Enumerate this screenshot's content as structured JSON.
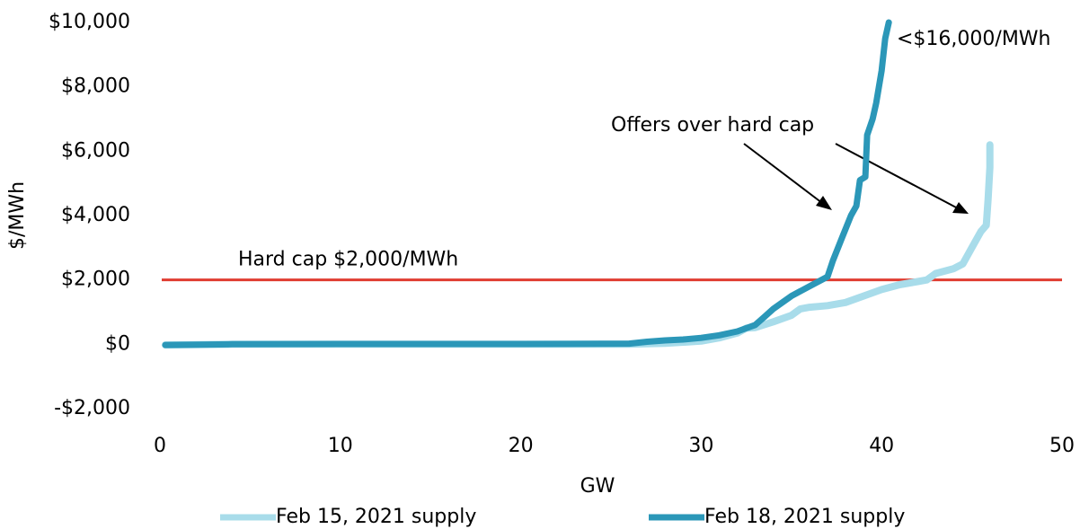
{
  "chart_data": {
    "type": "line",
    "x_label": "GW",
    "y_label": "$/MWh",
    "xlim": [
      0,
      50
    ],
    "xticks": [
      0,
      10,
      20,
      30,
      40,
      50
    ],
    "ylim": [
      -2000,
      10000
    ],
    "yticks": [
      {
        "value": -2000,
        "label": "-$2,000"
      },
      {
        "value": 0,
        "label": "$0"
      },
      {
        "value": 2000,
        "label": "$2,000"
      },
      {
        "value": 4000,
        "label": "$4,000"
      },
      {
        "value": 6000,
        "label": "$6,000"
      },
      {
        "value": 8000,
        "label": "$8,000"
      },
      {
        "value": 10000,
        "label": "$10,000"
      }
    ],
    "grid": false,
    "reference_lines": [
      {
        "value": 2000,
        "color": "#e03c31",
        "label": "Hard cap $2,000/MWh"
      }
    ],
    "annotations": [
      "Offers over hard cap",
      "<$16,000/MWh"
    ],
    "legend": "bottom",
    "series": [
      {
        "name": "Feb 15, 2021 supply",
        "color": "#a8dcea",
        "x": [
          0.3,
          4,
          10,
          20,
          26,
          28,
          30,
          31,
          32,
          32.5,
          33,
          34,
          35,
          35.5,
          36,
          37,
          38,
          39,
          40,
          41,
          42,
          42.5,
          43,
          44,
          44.5,
          45,
          45.5,
          45.8,
          45.9,
          46,
          46
        ],
        "values": [
          -20,
          0,
          0,
          0,
          0,
          30,
          100,
          200,
          350,
          500,
          520,
          700,
          900,
          1100,
          1150,
          1200,
          1300,
          1500,
          1700,
          1850,
          1950,
          2000,
          2200,
          2350,
          2500,
          3000,
          3500,
          3700,
          4500,
          5500,
          6200
        ]
      },
      {
        "name": "Feb 18, 2021 supply",
        "color": "#2b97b8",
        "x": [
          0.3,
          4,
          10,
          20,
          26,
          27,
          28,
          29,
          30,
          31,
          32,
          33,
          33.5,
          34,
          35,
          36,
          37,
          37.3,
          37.8,
          38.3,
          38.6,
          38.8,
          39.1,
          39.2,
          39.5,
          39.7,
          40,
          40.2,
          40.4
        ],
        "values": [
          -20,
          0,
          10,
          10,
          20,
          80,
          120,
          150,
          200,
          280,
          400,
          600,
          850,
          1100,
          1500,
          1800,
          2100,
          2600,
          3300,
          4000,
          4300,
          5100,
          5200,
          6500,
          7000,
          7500,
          8500,
          9500,
          10000
        ]
      }
    ]
  }
}
